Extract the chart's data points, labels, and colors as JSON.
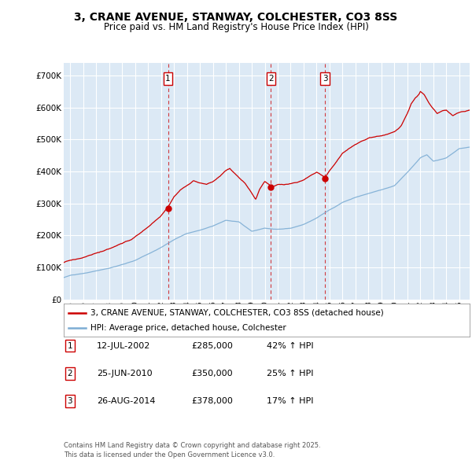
{
  "title": "3, CRANE AVENUE, STANWAY, COLCHESTER, CO3 8SS",
  "subtitle": "Price paid vs. HM Land Registry's House Price Index (HPI)",
  "plot_bg_color": "#dce9f5",
  "grid_color": "#ffffff",
  "red_color": "#cc0000",
  "blue_color": "#7dadd4",
  "ytick_values": [
    0,
    100000,
    200000,
    300000,
    400000,
    500000,
    600000,
    700000
  ],
  "ylim": [
    0,
    740000
  ],
  "xlim_start": 1994.5,
  "xlim_end": 2025.8,
  "sale_dates": [
    2002.54,
    2010.48,
    2014.65
  ],
  "sale_prices": [
    285000,
    350000,
    378000
  ],
  "sale_labels": [
    "1",
    "2",
    "3"
  ],
  "sale_info": [
    {
      "label": "1",
      "date": "12-JUL-2002",
      "price": "£285,000",
      "hpi": "42% ↑ HPI"
    },
    {
      "label": "2",
      "date": "25-JUN-2010",
      "price": "£350,000",
      "hpi": "25% ↑ HPI"
    },
    {
      "label": "3",
      "date": "26-AUG-2014",
      "price": "£378,000",
      "hpi": "17% ↑ HPI"
    }
  ],
  "legend_red": "3, CRANE AVENUE, STANWAY, COLCHESTER, CO3 8SS (detached house)",
  "legend_blue": "HPI: Average price, detached house, Colchester",
  "footer": "Contains HM Land Registry data © Crown copyright and database right 2025.\nThis data is licensed under the Open Government Licence v3.0.",
  "xtick_years": [
    1995,
    1996,
    1997,
    1998,
    1999,
    2000,
    2001,
    2002,
    2003,
    2004,
    2005,
    2006,
    2007,
    2008,
    2009,
    2010,
    2011,
    2012,
    2013,
    2014,
    2015,
    2016,
    2017,
    2018,
    2019,
    2020,
    2021,
    2022,
    2023,
    2024,
    2025
  ]
}
